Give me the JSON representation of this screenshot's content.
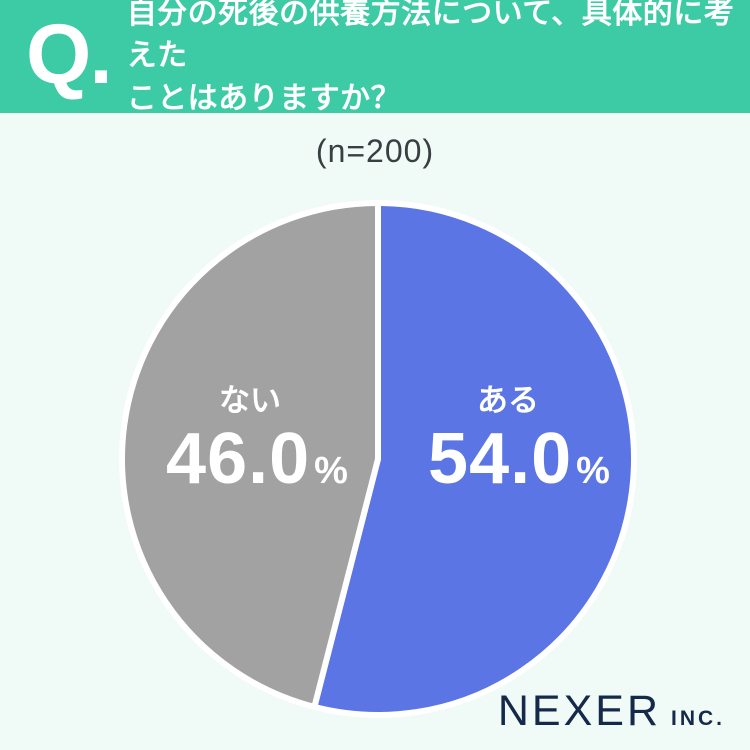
{
  "header": {
    "q_label": "Q.",
    "question_line1": "自分の死後の供養方法について、具体的に考えた",
    "question_line2": "ことはありますか？"
  },
  "chart_data": {
    "type": "pie",
    "title": "(n=200)",
    "question": "自分の死後の供養方法について、具体的に考えたことはありますか？",
    "n": 200,
    "unit": "%",
    "start_angle_deg": 0,
    "direction": "clockwise",
    "legend_position": "none",
    "slices": [
      {
        "label": "ある",
        "value": 54.0,
        "value_label": "54.0",
        "color": "#5B75E4"
      },
      {
        "label": "ない",
        "value": 46.0,
        "value_label": "46.0",
        "color": "#A2A2A2"
      }
    ]
  },
  "footer": {
    "logo_main": "NEXER",
    "logo_suffix": "INC."
  },
  "colors": {
    "header_bg": "#3CCBA4",
    "page_bg": "#F0FAF7",
    "slice_aru": "#5B75E4",
    "slice_nai": "#A2A2A2",
    "slice_divider": "#FFFFFF",
    "label_text": "#FFFFFF",
    "subtitle_text": "#383E42",
    "logo_text": "#15294B"
  }
}
